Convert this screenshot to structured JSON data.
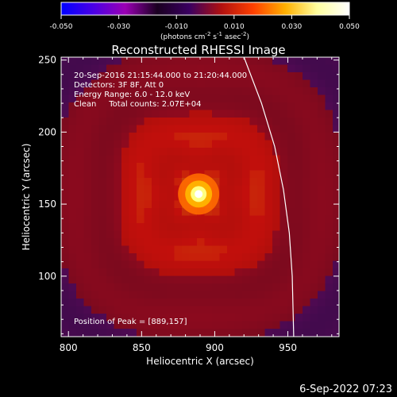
{
  "chart_data": {
    "type": "heatmap",
    "title": "Reconstructed RHESSI Image",
    "xlabel": "Heliocentric X (arcsec)",
    "ylabel": "Heliocentric Y (arcsec)",
    "xlim": [
      795,
      985
    ],
    "ylim": [
      58,
      252
    ],
    "x_ticks": [
      800,
      850,
      900,
      950
    ],
    "y_ticks": [
      100,
      150,
      200,
      250
    ],
    "colorbar": {
      "min": -0.05,
      "max": 0.05,
      "ticks": [
        "-0.050",
        "-0.030",
        "-0.010",
        "0.010",
        "0.030",
        "0.050"
      ],
      "label_parts": {
        "a": "(photons cm",
        "b": "-2",
        "c": " s",
        "d": "-1",
        "e": " asec",
        "f": "-2",
        "g": ")"
      },
      "stops": [
        "#0000ff",
        "#4a00e6",
        "#9a00b4",
        "#1a0020",
        "#3a0060",
        "#b01010",
        "#ff4000",
        "#ffb000",
        "#ffffa0",
        "#ffffff"
      ]
    },
    "annotations": [
      "20-Sep-2016 21:15:44.000 to 21:20:44.000",
      "Detectors: 3F 8F, Att 0",
      "Energy Range: 6.0 - 12.0 keV",
      "Clean     Total counts: 2.07E+04"
    ],
    "peak_label": "Position of Peak = [889,157]",
    "peak": {
      "x": 889,
      "y": 157
    },
    "limb_curve": [
      [
        920,
        252
      ],
      [
        932,
        220
      ],
      [
        941,
        190
      ],
      [
        947,
        160
      ],
      [
        951,
        130
      ],
      [
        953,
        100
      ],
      [
        954,
        58
      ]
    ],
    "timestamp": "6-Sep-2022 07:23"
  }
}
